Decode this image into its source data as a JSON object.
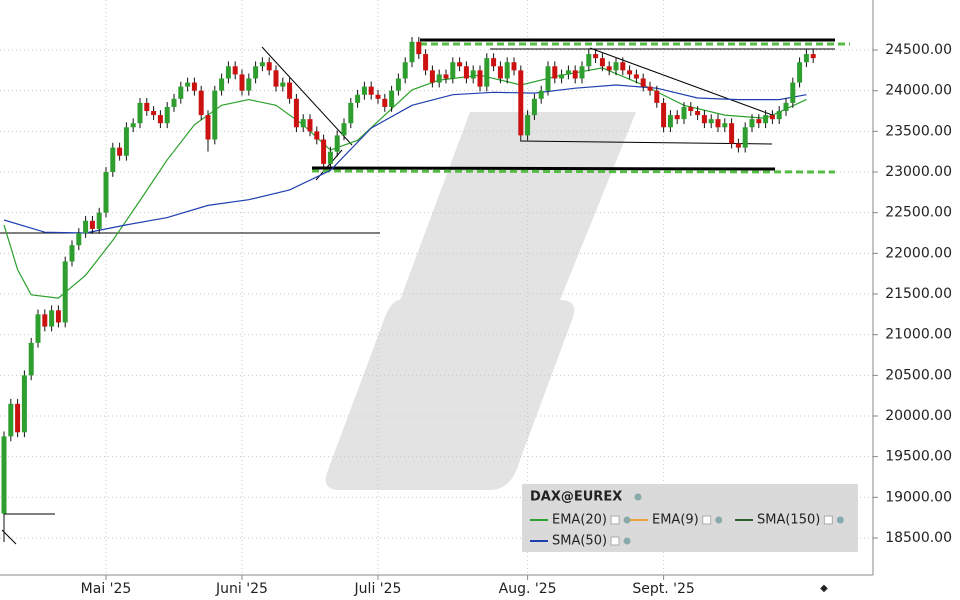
{
  "chart_data": {
    "type": "candlestick",
    "categories": [
      null,
      null,
      null,
      null,
      null,
      null,
      null,
      null,
      null,
      null,
      null,
      null,
      null,
      null,
      null,
      "Mai '25",
      null,
      null,
      null,
      null,
      null,
      null,
      null,
      null,
      null,
      null,
      null,
      null,
      null,
      null,
      null,
      null,
      null,
      null,
      null,
      "Juni '25",
      null,
      null,
      null,
      null,
      null,
      null,
      null,
      null,
      null,
      null,
      null,
      null,
      null,
      null,
      null,
      null,
      null,
      null,
      null,
      "Juli '25",
      null,
      null,
      null,
      null,
      null,
      null,
      null,
      null,
      null,
      null,
      null,
      null,
      null,
      null,
      null,
      null,
      null,
      null,
      null,
      null,
      null,
      "Aug. '25",
      null,
      null,
      null,
      null,
      null,
      null,
      null,
      null,
      null,
      null,
      null,
      null,
      null,
      null,
      null,
      null,
      null,
      null,
      null,
      "Sept. '25",
      null,
      null,
      null,
      null,
      null,
      null,
      null,
      null,
      null,
      null,
      null,
      null,
      null,
      null,
      null,
      null,
      null,
      null,
      null,
      null,
      null,
      null
    ],
    "open": [
      18800,
      19750,
      20150,
      19800,
      20500,
      20900,
      21250,
      21100,
      21300,
      21150,
      21900,
      22100,
      22250,
      22400,
      22300,
      22500,
      23000,
      23300,
      23200,
      23550,
      23600,
      23850,
      23750,
      23700,
      23600,
      23800,
      23900,
      24050,
      24100,
      24000,
      23700,
      23400,
      24000,
      24150,
      24300,
      24200,
      24000,
      24150,
      24300,
      24350,
      24250,
      24050,
      24100,
      23900,
      23550,
      23650,
      23500,
      23400,
      23100,
      23250,
      23450,
      23600,
      23850,
      23950,
      24050,
      23950,
      23900,
      23800,
      24000,
      24150,
      24350,
      24600,
      24450,
      24250,
      24100,
      24200,
      24150,
      24350,
      24300,
      24150,
      24250,
      24050,
      24400,
      24300,
      24150,
      24350,
      24250,
      23450,
      23700,
      23900,
      24000,
      24300,
      24150,
      24200,
      24250,
      24150,
      24300,
      24450,
      24400,
      24300,
      24250,
      24350,
      24250,
      24200,
      24150,
      24050,
      24000,
      23850,
      23550,
      23700,
      23650,
      23800,
      23750,
      23700,
      23600,
      23650,
      23550,
      23600,
      23350,
      23300,
      23550,
      23650,
      23600,
      23700,
      23650,
      23750,
      23850,
      24100,
      24350,
      24450
    ],
    "high": [
      19810,
      20210,
      20210,
      20560,
      20960,
      21310,
      21310,
      21360,
      21360,
      21960,
      22160,
      22310,
      22460,
      22460,
      22560,
      23060,
      23360,
      23360,
      23610,
      23660,
      23910,
      23910,
      23810,
      23760,
      23860,
      23960,
      24110,
      24160,
      24160,
      24060,
      23760,
      24060,
      24210,
      24360,
      24360,
      24260,
      24210,
      24360,
      24410,
      24410,
      24310,
      24160,
      24160,
      23960,
      23710,
      23710,
      23560,
      23460,
      23310,
      23510,
      23660,
      23910,
      24010,
      24110,
      24110,
      24010,
      23960,
      24060,
      24210,
      24410,
      24660,
      24660,
      24510,
      24310,
      24260,
      24260,
      24410,
      24410,
      24360,
      24310,
      24310,
      24460,
      24460,
      24360,
      24410,
      24410,
      24310,
      23760,
      23960,
      24060,
      24360,
      24360,
      24260,
      24310,
      24310,
      24360,
      24510,
      24510,
      24460,
      24360,
      24410,
      24410,
      24310,
      24260,
      24210,
      24110,
      24060,
      23910,
      23760,
      23760,
      23860,
      23860,
      23810,
      23760,
      23710,
      23710,
      23660,
      23660,
      23410,
      23610,
      23710,
      23710,
      23760,
      23760,
      23810,
      23910,
      24160,
      24410,
      24510,
      24510
    ],
    "low": [
      18450,
      19690,
      19740,
      19740,
      20440,
      20840,
      21040,
      21040,
      21090,
      21090,
      21840,
      22040,
      22190,
      22240,
      22240,
      22440,
      22940,
      23140,
      23140,
      23490,
      23540,
      23690,
      23640,
      23540,
      23540,
      23740,
      23840,
      23990,
      23940,
      23640,
      23250,
      23340,
      23940,
      24090,
      24140,
      23940,
      23940,
      24090,
      24240,
      24190,
      23990,
      23990,
      23840,
      23490,
      23490,
      23440,
      23340,
      23040,
      23040,
      23190,
      23390,
      23540,
      23790,
      23890,
      23890,
      23840,
      23740,
      23740,
      23940,
      24090,
      24290,
      24390,
      24190,
      24040,
      24040,
      24090,
      24090,
      24240,
      24090,
      24090,
      23990,
      23990,
      24240,
      24090,
      24090,
      24190,
      23390,
      23390,
      23640,
      23840,
      23940,
      24090,
      24090,
      24140,
      24090,
      24090,
      24240,
      24340,
      24240,
      24190,
      24190,
      24190,
      24140,
      24090,
      23990,
      23940,
      23790,
      23490,
      23490,
      23590,
      23590,
      23690,
      23640,
      23540,
      23540,
      23490,
      23490,
      23290,
      23240,
      23240,
      23490,
      23540,
      23540,
      23590,
      23590,
      23690,
      23790,
      24040,
      24290,
      24340
    ],
    "close": [
      19750,
      20150,
      19800,
      20500,
      20900,
      21250,
      21100,
      21300,
      21150,
      21900,
      22100,
      22250,
      22400,
      22300,
      22500,
      23000,
      23300,
      23200,
      23550,
      23600,
      23850,
      23750,
      23700,
      23600,
      23800,
      23900,
      24050,
      24100,
      24000,
      23700,
      23400,
      24000,
      24150,
      24300,
      24200,
      24000,
      24150,
      24300,
      24350,
      24250,
      24050,
      24100,
      23900,
      23550,
      23650,
      23500,
      23400,
      23100,
      23250,
      23450,
      23600,
      23850,
      23950,
      24050,
      23950,
      23900,
      23800,
      24000,
      24150,
      24350,
      24600,
      24450,
      24250,
      24100,
      24200,
      24150,
      24350,
      24300,
      24150,
      24250,
      24050,
      24400,
      24300,
      24150,
      24350,
      24250,
      23450,
      23700,
      23900,
      24000,
      24300,
      24150,
      24200,
      24250,
      24150,
      24300,
      24450,
      24400,
      24300,
      24250,
      24350,
      24250,
      24200,
      24150,
      24050,
      24000,
      23850,
      23550,
      23700,
      23650,
      23800,
      23750,
      23700,
      23600,
      23650,
      23550,
      23600,
      23350,
      23300,
      23550,
      23650,
      23600,
      23700,
      23650,
      23750,
      23850,
      24100,
      24350,
      24450,
      24400
    ],
    "up_color": "#2e9e2e",
    "down_color": "#cc1111",
    "legend_title": "DAX@EUREX",
    "indicators": [
      {
        "name": "EMA(20)",
        "color": "#2ca02c",
        "x": [
          0,
          2,
          4,
          8,
          12,
          16,
          20,
          24,
          28,
          32,
          36,
          40,
          44,
          48,
          52,
          56,
          60,
          64,
          70,
          76,
          82,
          88,
          94,
          100,
          106,
          112,
          118
        ],
        "values": [
          22350,
          21800,
          21490,
          21450,
          21730,
          22160,
          22650,
          23150,
          23580,
          23820,
          23890,
          23820,
          23580,
          23270,
          23390,
          23700,
          24010,
          24130,
          24190,
          24070,
          24190,
          24280,
          24070,
          23820,
          23700,
          23660,
          23890
        ]
      },
      {
        "name": "EMA(9)",
        "color": "#e8a33c"
      },
      {
        "name": "SMA(150)",
        "color": "#2f5f2f"
      },
      {
        "name": "SMA(50)",
        "color": "#1f3fb0",
        "x": [
          0,
          6,
          12,
          18,
          24,
          30,
          36,
          42,
          48,
          54,
          60,
          66,
          72,
          78,
          84,
          90,
          96,
          102,
          108,
          114,
          118
        ],
        "values": [
          22410,
          22260,
          22250,
          22350,
          22440,
          22590,
          22660,
          22780,
          23020,
          23540,
          23820,
          23950,
          23980,
          23970,
          24030,
          24070,
          24030,
          23910,
          23890,
          23890,
          23950
        ]
      }
    ],
    "ylim": [
      18045,
      25115
    ],
    "yticks": [
      {
        "value": 18500,
        "label": "18500.00"
      },
      {
        "value": 19000,
        "label": "19000.00"
      },
      {
        "value": 19500,
        "label": "19500.00"
      },
      {
        "value": 20000,
        "label": "20000.00"
      },
      {
        "value": 20500,
        "label": "20500.00"
      },
      {
        "value": 21000,
        "label": "21000.00"
      },
      {
        "value": 21500,
        "label": "21500.00"
      },
      {
        "value": 22000,
        "label": "22000.00"
      },
      {
        "value": 22500,
        "label": "22500.00"
      },
      {
        "value": 23000,
        "label": "23000.00"
      },
      {
        "value": 23500,
        "label": "23500.00"
      },
      {
        "value": 24000,
        "label": "24000.00"
      },
      {
        "value": 24500,
        "label": "24500.00"
      }
    ],
    "grid": true
  }
}
